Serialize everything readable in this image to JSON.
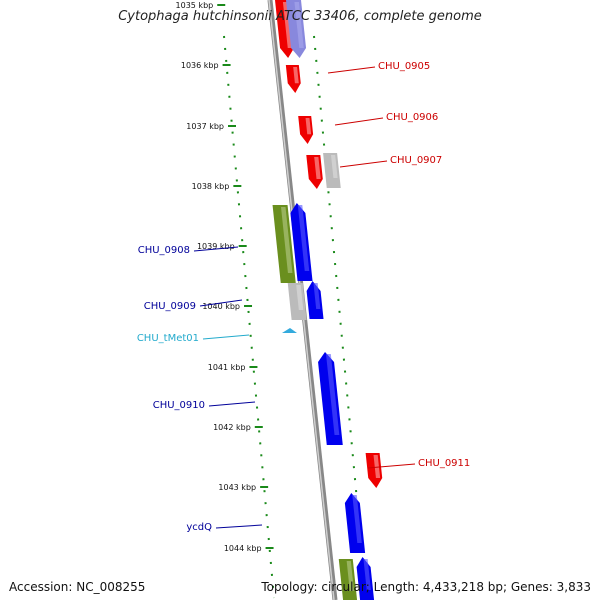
{
  "title": "Cytophaga hutchinsonii ATCC 33406, complete genome",
  "footer": {
    "accession": "Accession: NC_008255",
    "topology": "Topology: circular; Length: 4,433,218 bp; Genes: 3,833"
  },
  "colors": {
    "forward": "#ee0000",
    "reverse": "#0000ee",
    "forward_light": "#ffaaaa",
    "reverse_light": "#8888dd",
    "green": "#6a8f1e",
    "gray": "#bbbbbb",
    "trna": "#33aadd",
    "tick": "#1a8a1a",
    "backbone": "#888888"
  },
  "ticks": [
    {
      "label": "1035 kbp"
    },
    {
      "label": "1036 kbp"
    },
    {
      "label": "1037 kbp"
    },
    {
      "label": "1038 kbp"
    },
    {
      "label": "1039 kbp"
    },
    {
      "label": "1040 kbp"
    },
    {
      "label": "1041 kbp"
    },
    {
      "label": "1042 kbp"
    },
    {
      "label": "1043 kbp"
    },
    {
      "label": "1044 kbp"
    }
  ],
  "gene_labels": [
    {
      "name": "CHU_0905",
      "color": "#cc0000"
    },
    {
      "name": "CHU_0906",
      "color": "#cc0000"
    },
    {
      "name": "CHU_0907",
      "color": "#cc0000"
    },
    {
      "name": "CHU_0908",
      "color": "#000099"
    },
    {
      "name": "CHU_0909",
      "color": "#000099"
    },
    {
      "name": "CHU_tMet01",
      "color": "#22aacc"
    },
    {
      "name": "CHU_0910",
      "color": "#000099"
    },
    {
      "name": "CHU_0911",
      "color": "#cc0000"
    },
    {
      "name": "ycdQ",
      "color": "#000099"
    }
  ]
}
